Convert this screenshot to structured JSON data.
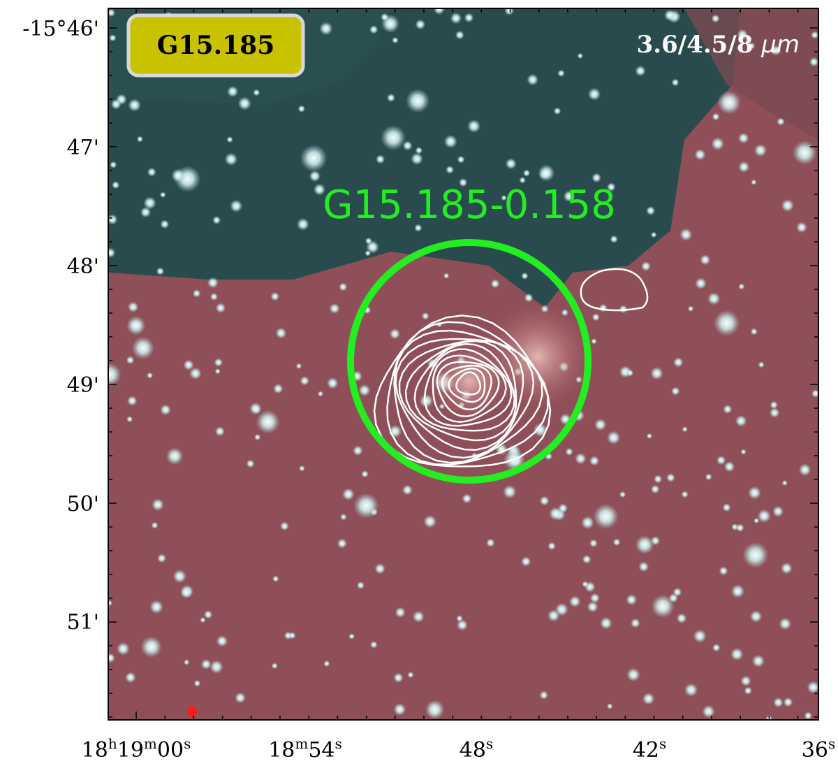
{
  "badge": "G15.185",
  "bands": {
    "text": "3.6/4.5/8 ",
    "unit": "μm"
  },
  "source_label": "G15.185-0.158",
  "dec_ticks": [
    "-15°46'",
    "47'",
    "48'",
    "49'",
    "50'",
    "51'"
  ],
  "ra_ticks": [
    [
      "18",
      "h",
      "19",
      "m",
      "00",
      "s"
    ],
    [
      "18",
      "m",
      "54",
      "s"
    ],
    [
      "48",
      "s"
    ],
    [
      "42",
      "s"
    ],
    [
      "36",
      "s"
    ]
  ]
}
